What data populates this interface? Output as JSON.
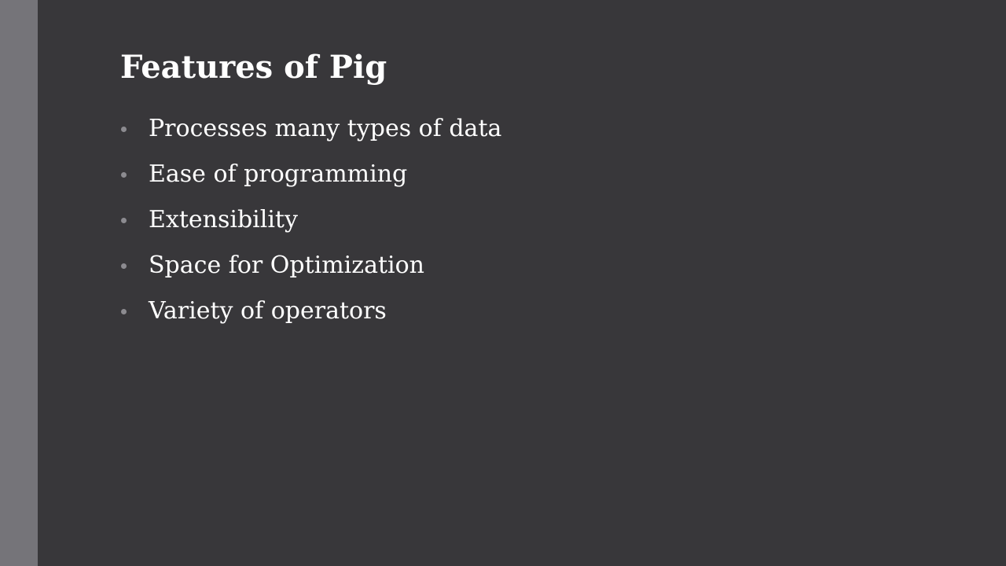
{
  "slide": {
    "title": "Features of Pig",
    "bullets": [
      "Processes many types of data",
      "Ease of programming",
      "Extensibility",
      "Space for Optimization",
      "Variety of operators"
    ]
  },
  "colors": {
    "background": "#38373a",
    "accent_bar": "#757479",
    "text": "#ffffff",
    "bullet_dot": "#8c8b90"
  }
}
